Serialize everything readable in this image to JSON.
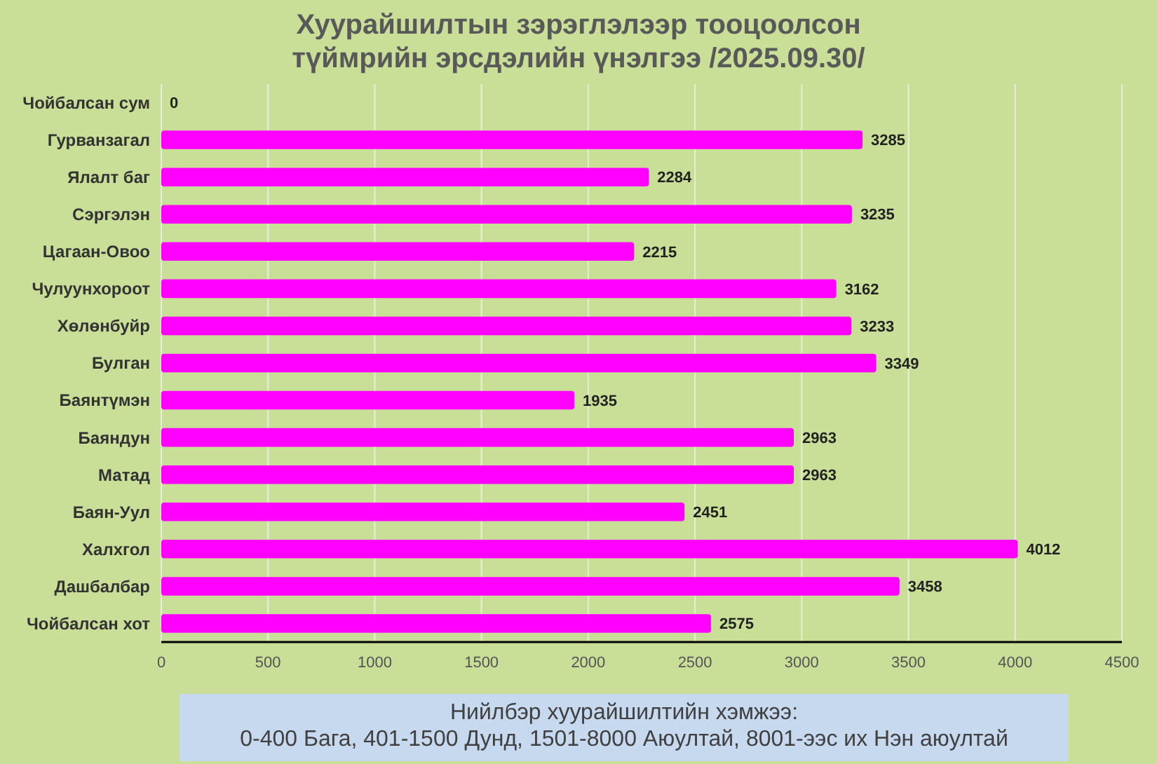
{
  "chart_data": {
    "type": "bar",
    "orientation": "horizontal",
    "title": "Хуурайшилтын зэрэглэлээр тооцоолсон түймрийн эрсдэлийн үнэлгээ /2025.09.30/",
    "categories": [
      "Чойбалсан сум",
      "Гурванзагал",
      "Ялалт баг",
      "Сэргэлэн",
      "Цагаан-Овоо",
      "Чулуунхороот",
      "Хөлөнбуйр",
      "Булган",
      "Баянтүмэн",
      "Баяндун",
      "Матад",
      "Баян-Уул",
      "Халхгол",
      "Дашбалбар",
      "Чойбалсан хот"
    ],
    "values": [
      0,
      3285,
      2284,
      3235,
      2215,
      3162,
      3233,
      3349,
      1935,
      2963,
      2963,
      2451,
      4012,
      3458,
      2575
    ],
    "color": "#ff00ff",
    "xlim": [
      0,
      4500
    ],
    "xticks": [
      0,
      500,
      1000,
      1500,
      2000,
      2500,
      3000,
      3500,
      4000,
      4500
    ],
    "grid": "x",
    "data_labels": true,
    "annotations": [
      "Нийлбэр хуурайшилтийн хэмжээ:",
      "0-400 Бага, 401-1500 Дунд, 1501-8000 Аюултай, 8001-ээс их Нэн аюултай"
    ]
  }
}
